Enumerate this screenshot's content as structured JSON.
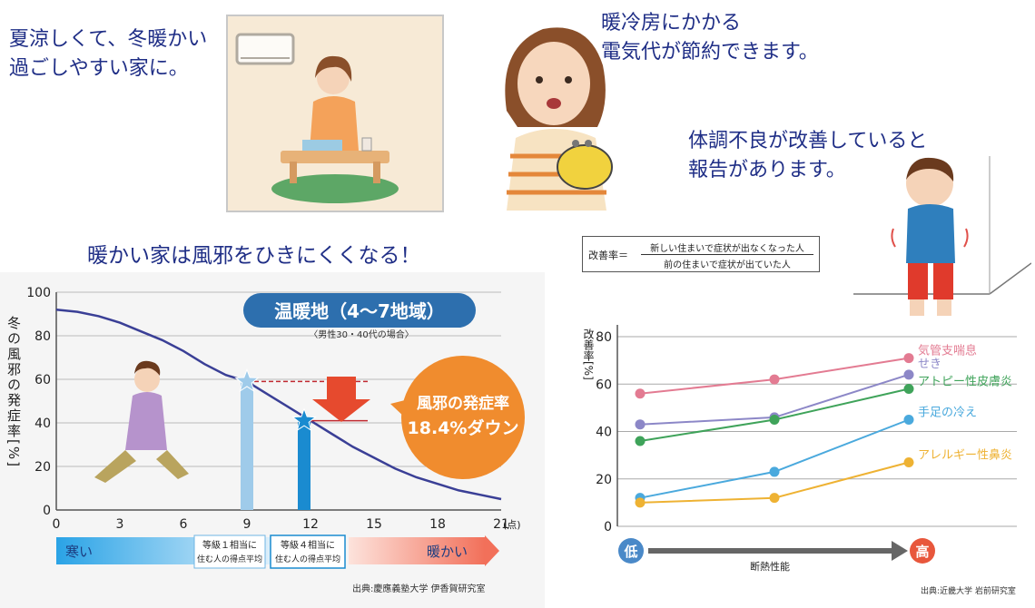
{
  "captions": {
    "comfort": "夏涼しくて、冬暖かい\n過ごしやすい家に。",
    "savings": "暖冷房にかかる\n電気代が節約できます。",
    "health": "体調不良が改善していると\n報告があります。",
    "cold_heading": "暖かい家は風邪をひきにくくなる！"
  },
  "formula": {
    "label": "改善率＝",
    "numerator": "新しい住まいで症状が出なくなった人",
    "denominator": "前の住まいで症状が出ていた人"
  },
  "left_chart": {
    "badge": "温暖地（4〜7地域）",
    "note": "〈男性30・40代の場合〉",
    "callout_line1": "風邪の発症率",
    "callout_line2": "18.4%ダウン",
    "band_cold": "寒い",
    "band_warm": "暖かい",
    "grade1_line1": "等級１相当に",
    "grade1_line2": "住む人の得点平均",
    "grade4_line1": "等級４相当に",
    "grade4_line2": "住む人の得点平均",
    "x_unit": "(点)",
    "source": "出典:慶應義塾大学 伊香賀研究室"
  },
  "right_chart": {
    "low_label": "低",
    "high_label": "高",
    "axis_caption": "断熱性能",
    "source": "出典:近畿大学 岩前研究室"
  },
  "chart_data": [
    {
      "type": "line",
      "ylabel": "冬の風邪の発症率[%]",
      "x_unit": "(点)",
      "xlim": [
        0,
        21
      ],
      "ylim": [
        0,
        100
      ],
      "x_ticks": [
        0,
        3,
        6,
        9,
        12,
        15,
        18,
        21
      ],
      "y_ticks": [
        0,
        20,
        40,
        60,
        80,
        100
      ],
      "x_tick_labels": [
        "0",
        "3",
        "6",
        "9",
        "12",
        "15",
        "18",
        "21"
      ],
      "y_tick_labels": [
        "0",
        "20",
        "40",
        "60",
        "80",
        "100"
      ],
      "curve": {
        "x": [
          0,
          1,
          2,
          3,
          4,
          5,
          6,
          7,
          8,
          9,
          10,
          11,
          12,
          13,
          14,
          15,
          16,
          17,
          18,
          19,
          20,
          21
        ],
        "y": [
          92,
          91,
          89,
          86,
          82,
          78,
          73,
          67,
          62,
          59,
          53,
          47,
          41,
          35,
          29,
          24,
          19,
          15,
          12,
          9,
          7,
          5
        ]
      },
      "markers": [
        {
          "x": 9,
          "y": 59,
          "color": "#9fcbea"
        },
        {
          "x": 11.7,
          "y": 41,
          "color": "#1a8bd0"
        }
      ],
      "colors": {
        "curve": "#3a3f96",
        "reduction": "#c0282f",
        "callout": "#f08c2e",
        "badge": "#2d6fae"
      }
    },
    {
      "type": "line",
      "ylabel": "改善率[%]",
      "ylim": [
        0,
        85
      ],
      "y_ticks": [
        0,
        20,
        40,
        60,
        80
      ],
      "y_tick_labels": [
        "0",
        "20",
        "40",
        "60",
        "80"
      ],
      "x": [
        0,
        1,
        2
      ],
      "series": [
        {
          "name": "気管支喘息",
          "values": [
            56,
            62,
            71
          ],
          "color": "#e37b92"
        },
        {
          "name": "せき",
          "values": [
            43,
            46,
            64
          ],
          "color": "#8c87c7"
        },
        {
          "name": "アトピー性皮膚炎",
          "values": [
            36,
            45,
            58
          ],
          "color": "#3fa35a"
        },
        {
          "name": "手足の冷え",
          "values": [
            12,
            23,
            45
          ],
          "color": "#4aa9dd"
        },
        {
          "name": "アレルギー性鼻炎",
          "values": [
            10,
            12,
            27
          ],
          "color": "#eeb233"
        }
      ]
    }
  ]
}
